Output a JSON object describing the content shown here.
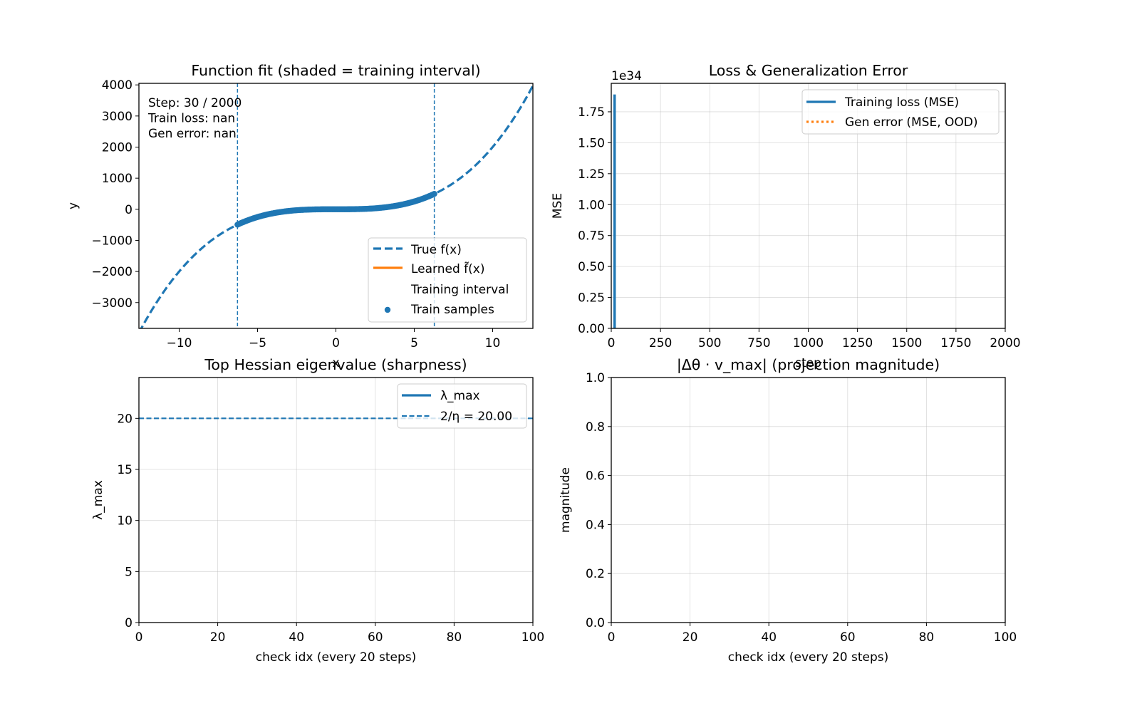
{
  "figure": {
    "background": "#ffffff"
  },
  "chart_data": [
    {
      "id": "fit",
      "type": "line",
      "title": "Function fit (shaded = training interval)",
      "xlabel": "x",
      "ylabel": "y",
      "xlim": [
        -12.57,
        12.57
      ],
      "ylim": [
        -3830,
        4050
      ],
      "xticks": [
        -10,
        -5,
        0,
        5,
        10
      ],
      "xtick_labels": [
        "−10",
        "−5",
        "0",
        "5",
        "10"
      ],
      "yticks": [
        -3000,
        -2000,
        -1000,
        0,
        1000,
        2000,
        3000,
        4000
      ],
      "ytick_labels": [
        "−3000",
        "−2000",
        "−1000",
        "0",
        "1000",
        "2000",
        "3000",
        "4000"
      ],
      "grid": false,
      "legend_loc": "lower-right",
      "true_function": {
        "form": "cubic",
        "coef": 2,
        "x_range": [
          -12.57,
          12.57
        ]
      },
      "training_interval": [
        -6.28,
        6.28
      ],
      "train_samples": {
        "x_range": [
          -6.28,
          6.28
        ],
        "follows": "true_function"
      },
      "annotation": [
        "Step: 30 / 2000",
        "Train loss: nan",
        "Gen error: nan"
      ],
      "legend": [
        {
          "label": "True f(x)",
          "style": "dashed",
          "color": "#1f77b4"
        },
        {
          "label": "Learned f̃(x)",
          "style": "solid",
          "color": "#ff7f0e"
        },
        {
          "label": "Training interval",
          "style": "shaded",
          "color": "#1f77b4"
        },
        {
          "label": "Train samples",
          "style": "marker",
          "color": "#1f77b4"
        }
      ]
    },
    {
      "id": "loss",
      "type": "line",
      "title": "Loss & Generalization Error",
      "xlabel": "step",
      "ylabel": "MSE",
      "xlim": [
        0,
        2000
      ],
      "ylim": [
        0,
        1.98
      ],
      "offset_label": "1e34",
      "xticks": [
        0,
        250,
        500,
        750,
        1000,
        1250,
        1500,
        1750,
        2000
      ],
      "xtick_labels": [
        "0",
        "250",
        "500",
        "750",
        "1000",
        "1250",
        "1500",
        "1750",
        "2000"
      ],
      "yticks": [
        0,
        0.25,
        0.5,
        0.75,
        1.0,
        1.25,
        1.5,
        1.75
      ],
      "ytick_labels": [
        "0.00",
        "0.25",
        "0.50",
        "0.75",
        "1.00",
        "1.25",
        "1.50",
        "1.75"
      ],
      "grid": true,
      "legend_loc": "upper-right",
      "series": [
        {
          "name": "Training loss (MSE)",
          "style": "solid",
          "color": "#1f77b4",
          "x": [
            17,
            17,
            17
          ],
          "y": [
            1.89,
            0.3,
            0
          ]
        },
        {
          "name": "Gen error (MSE, OOD)",
          "style": "dotted",
          "color": "#ff7f0e",
          "x": [],
          "y": []
        }
      ]
    },
    {
      "id": "hessian",
      "type": "line",
      "title": "Top Hessian eigenvalue (sharpness)",
      "xlabel": "check idx (every 20 steps)",
      "ylabel": "λ_max",
      "xlim": [
        0,
        100
      ],
      "ylim": [
        0,
        24
      ],
      "xticks": [
        0,
        20,
        40,
        60,
        80,
        100
      ],
      "xtick_labels": [
        "0",
        "20",
        "40",
        "60",
        "80",
        "100"
      ],
      "yticks": [
        0,
        5,
        10,
        15,
        20
      ],
      "ytick_labels": [
        "0",
        "5",
        "10",
        "15",
        "20"
      ],
      "grid": true,
      "legend_loc": "upper-right",
      "series": [
        {
          "name": "λ_max",
          "style": "solid",
          "color": "#1f77b4",
          "x": [],
          "y": []
        },
        {
          "name": "2/η = 20.00",
          "style": "dashed",
          "color": "#1f77b4",
          "hline": 20
        }
      ]
    },
    {
      "id": "projection",
      "type": "line",
      "title": "|Δθ · v_max| (projection magnitude)",
      "xlabel": "check idx (every 20 steps)",
      "ylabel": "magnitude",
      "xlim": [
        0,
        100
      ],
      "ylim": [
        0,
        1
      ],
      "xticks": [
        0,
        20,
        40,
        60,
        80,
        100
      ],
      "xtick_labels": [
        "0",
        "20",
        "40",
        "60",
        "80",
        "100"
      ],
      "yticks": [
        0,
        0.2,
        0.4,
        0.6,
        0.8,
        1.0
      ],
      "ytick_labels": [
        "0.0",
        "0.2",
        "0.4",
        "0.6",
        "0.8",
        "1.0"
      ],
      "grid": true,
      "series": []
    }
  ]
}
